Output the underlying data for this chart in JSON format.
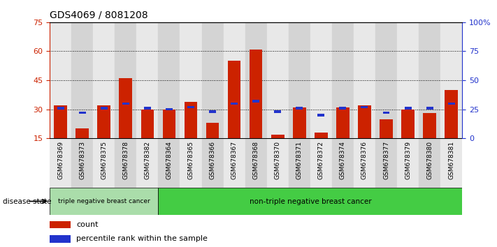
{
  "title": "GDS4069 / 8081208",
  "samples": [
    "GSM678369",
    "GSM678373",
    "GSM678375",
    "GSM678378",
    "GSM678382",
    "GSM678364",
    "GSM678365",
    "GSM678366",
    "GSM678367",
    "GSM678368",
    "GSM678370",
    "GSM678371",
    "GSM678372",
    "GSM678374",
    "GSM678376",
    "GSM678377",
    "GSM678379",
    "GSM678380",
    "GSM678381"
  ],
  "counts": [
    32,
    20,
    32,
    46,
    30,
    30,
    34,
    23,
    55,
    61,
    17,
    31,
    18,
    31,
    32,
    25,
    30,
    28,
    40
  ],
  "percentiles": [
    26,
    22,
    26,
    30,
    26,
    25,
    27,
    23,
    30,
    32,
    23,
    26,
    20,
    26,
    27,
    22,
    26,
    26,
    30
  ],
  "bar_color": "#cc2200",
  "blue_color": "#2233cc",
  "bg_color": "#ffffff",
  "col_bg_even": "#e8e8e8",
  "col_bg_odd": "#d4d4d4",
  "left_yticks": [
    15,
    30,
    45,
    60,
    75
  ],
  "right_yticks": [
    0,
    25,
    50,
    75,
    100
  ],
  "ylim_left": [
    15,
    75
  ],
  "ylim_right": [
    0,
    100
  ],
  "group1_label": "triple negative breast cancer",
  "group2_label": "non-triple negative breast cancer",
  "group1_count": 5,
  "group2_count": 14,
  "legend_count_label": "count",
  "legend_pct_label": "percentile rank within the sample",
  "disease_state_label": "disease state",
  "tick_color_left": "#cc2200",
  "tick_color_right": "#2233cc",
  "group1_color": "#aaddaa",
  "group2_color": "#44cc44"
}
